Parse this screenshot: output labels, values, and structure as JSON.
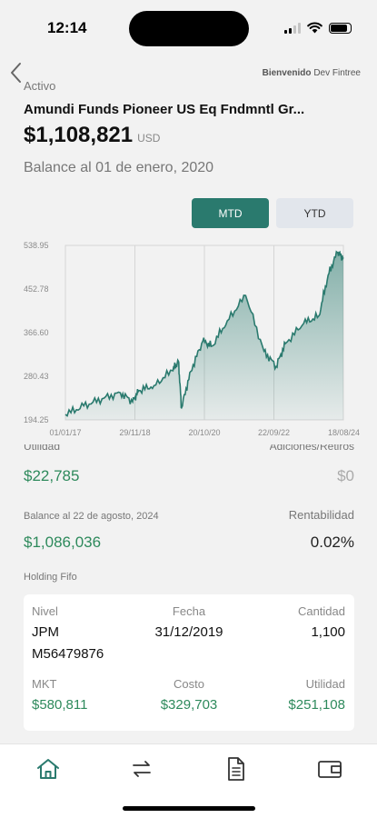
{
  "status": {
    "time": "12:14"
  },
  "header": {
    "welcome_prefix": "Bienvenido",
    "welcome_user": "Dev Fintree",
    "label": "Activo",
    "fund_name": "Amundi Funds Pioneer US Eq Fndmntl Gr...",
    "balance": "$1,108,821",
    "currency": "USD",
    "balance_date": "Balance al 01 de enero, 2020"
  },
  "toggle": {
    "mtd": "MTD",
    "ytd": "YTD",
    "selected": "MTD"
  },
  "chart_data": {
    "type": "area",
    "y_ticks": [
      "538.95",
      "452.78",
      "366.60",
      "280.43",
      "194.25"
    ],
    "x_ticks": [
      "01/01/17",
      "29/11/18",
      "20/10/20",
      "22/09/22",
      "18/08/24"
    ],
    "ylim": [
      194.25,
      538.95
    ],
    "x": [
      "2017-01",
      "2017-07",
      "2018-01",
      "2018-07",
      "2018-11",
      "2019-01",
      "2019-06",
      "2019-12",
      "2020-02",
      "2020-03",
      "2020-06",
      "2020-10",
      "2021-01",
      "2021-06",
      "2021-12",
      "2022-06",
      "2022-10",
      "2023-01",
      "2023-07",
      "2023-12",
      "2024-03",
      "2024-06",
      "2024-08"
    ],
    "values": [
      205,
      222,
      236,
      248,
      230,
      252,
      262,
      292,
      310,
      218,
      290,
      350,
      340,
      390,
      440,
      330,
      300,
      345,
      385,
      400,
      480,
      525,
      515
    ],
    "colors": {
      "line": "#2a7a6e",
      "fill_top": "#2a7a6e",
      "fill_bottom": "#e8f1ef"
    }
  },
  "stats": {
    "utilidad_label": "Utilidad",
    "utilidad_value": "$22,785",
    "adiciones_label": "Adiciones/Retiros",
    "adiciones_value": "$0",
    "balance_label": "Balance al 22 de agosto, 2024",
    "balance_value": "$1,086,036",
    "rentabilidad_label": "Rentabilidad",
    "rentabilidad_value": "0.02%"
  },
  "holding": {
    "title": "Holding Fifo",
    "nivel_label": "Nivel",
    "nivel_value_1": "JPM",
    "nivel_value_2": "M56479876",
    "fecha_label": "Fecha",
    "fecha_value": "31/12/2019",
    "cantidad_label": "Cantidad",
    "cantidad_value": "1,100",
    "mkt_label": "MKT",
    "mkt_value": "$580,811",
    "costo_label": "Costo",
    "costo_value": "$329,703",
    "utilidad_label": "Utilidad",
    "utilidad_value": "$251,108"
  },
  "tabs": [
    {
      "icon": "home-icon",
      "active": true
    },
    {
      "icon": "transfer-icon",
      "active": false
    },
    {
      "icon": "document-icon",
      "active": false
    },
    {
      "icon": "wallet-icon",
      "active": false
    }
  ]
}
